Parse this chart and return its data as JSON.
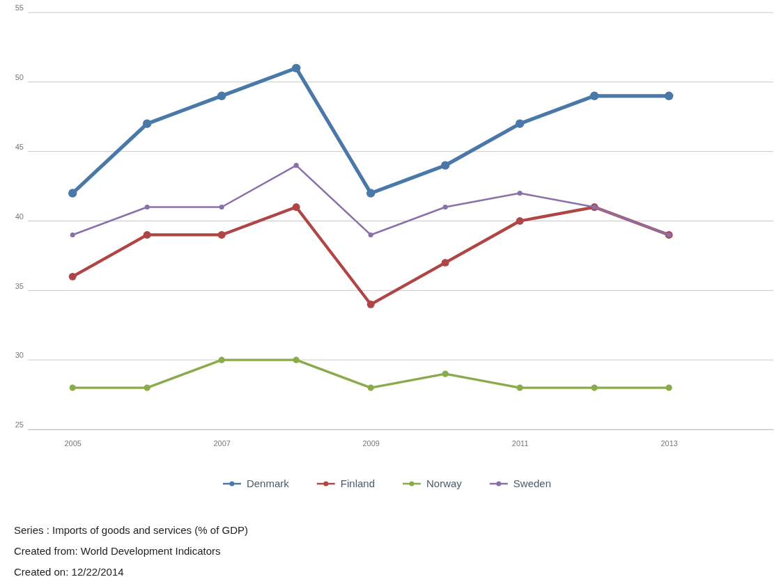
{
  "chart_data": {
    "type": "line",
    "x": [
      2005,
      2006,
      2007,
      2008,
      2009,
      2010,
      2011,
      2012,
      2013
    ],
    "xlim": [
      2004.4,
      2014.4
    ],
    "xticks": [
      2005,
      2007,
      2009,
      2011,
      2013
    ],
    "ylim": [
      25,
      55
    ],
    "yticks": [
      25,
      30,
      35,
      40,
      45,
      50,
      55
    ],
    "grid": "y",
    "legend": "bottom",
    "marker": "circle",
    "line_style": "solid",
    "series": [
      {
        "name": "Denmark",
        "color": "#4a78a8",
        "values": [
          42,
          47,
          49,
          51,
          42,
          44,
          47,
          49,
          49
        ]
      },
      {
        "name": "Finland",
        "color": "#b04545",
        "values": [
          36,
          39,
          39,
          41,
          34,
          37,
          40,
          41,
          39
        ]
      },
      {
        "name": "Norway",
        "color": "#8aab4a",
        "values": [
          28,
          28,
          30,
          30,
          28,
          29,
          28,
          28,
          28
        ]
      },
      {
        "name": "Sweden",
        "color": "#8a70aa",
        "values": [
          39,
          41,
          41,
          44,
          39,
          41,
          42,
          41,
          39
        ]
      }
    ],
    "annotations": [
      "Series : Imports of goods and services (% of GDP)",
      "Created from: World Development Indicators",
      "Created on: 12/22/2014"
    ]
  }
}
